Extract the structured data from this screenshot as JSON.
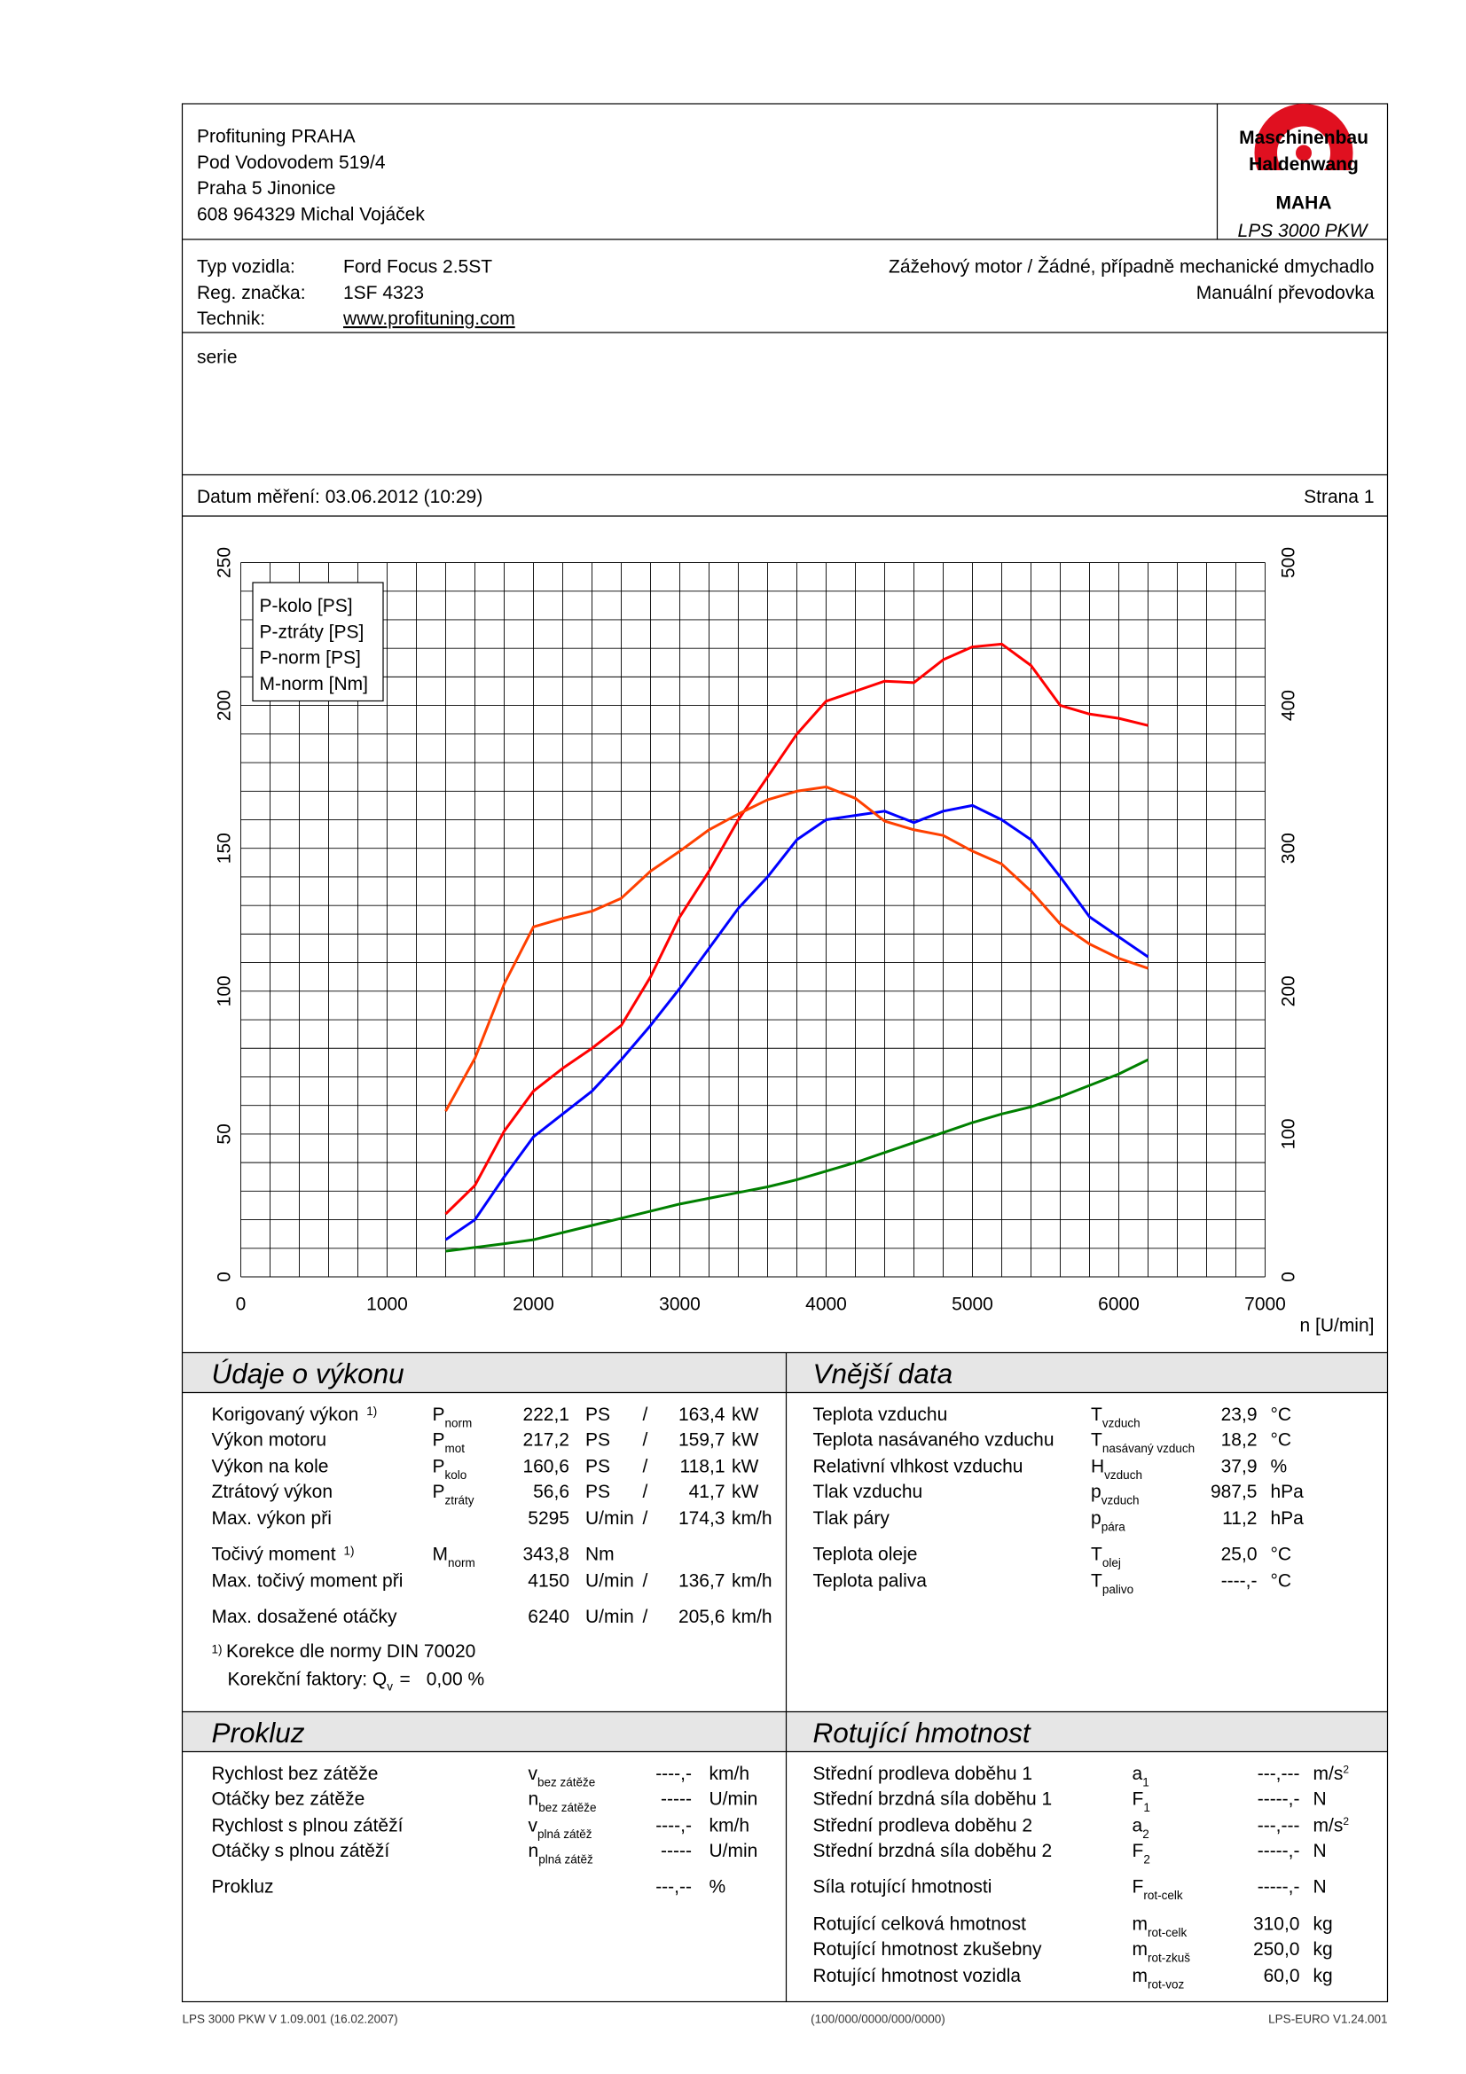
{
  "header": {
    "company": [
      "Profituning PRAHA",
      "Pod Vodovodem 519/4",
      "Praha 5 Jinonice",
      "608 964329 Michal Vojáček"
    ],
    "logo": {
      "ring_top": "Maschinenbau",
      "ring_bottom": "Haldenwang",
      "brand": "MAHA"
    },
    "model": "LPS 3000 PKW"
  },
  "vehicle": {
    "rows": [
      [
        "Typ vozidla:",
        "Ford Focus 2.5ST"
      ],
      [
        "Reg. značka:",
        "1SF 4323"
      ],
      [
        "Technik:",
        "www.profituning.com"
      ]
    ],
    "right": [
      "Zážehový motor / Žádné, případně mechanické dmychadlo",
      "Manuální převodovka"
    ]
  },
  "note": "serie",
  "date": "Datum měření: 03.06.2012 (10:29)",
  "page": "Strana 1",
  "chart_data": {
    "type": "line",
    "xlabel": "n [U/min]",
    "grid": true,
    "legend": "upper left",
    "xlim": [
      0,
      7000
    ],
    "xticks": [
      0,
      1000,
      2000,
      3000,
      4000,
      5000,
      6000,
      7000
    ],
    "ylim": [
      0,
      250
    ],
    "yticks": [
      0,
      50,
      100,
      150,
      200,
      250
    ],
    "y2lim": [
      0,
      500
    ],
    "y2ticks": [
      0,
      100,
      200,
      300,
      400,
      500
    ],
    "y2color": "#ff4000",
    "x": [
      1400,
      1600,
      1800,
      2000,
      2200,
      2400,
      2600,
      2800,
      3000,
      3200,
      3400,
      3600,
      3800,
      4000,
      4200,
      4400,
      4600,
      4800,
      5000,
      5200,
      5400,
      5600,
      5800,
      6000,
      6200
    ],
    "series": [
      {
        "name": "P-kolo [PS]",
        "color": "#0000ff",
        "values": [
          13,
          20,
          35,
          49,
          57,
          65,
          76,
          88,
          101,
          115,
          129,
          140,
          153,
          160,
          161.5,
          163,
          159,
          163,
          165,
          160,
          153,
          140,
          126,
          119,
          112
        ]
      },
      {
        "name": "P-ztráty [PS]",
        "color": "#008000",
        "values": [
          9,
          10.3,
          11.6,
          13,
          15.5,
          18,
          20.5,
          23,
          25.5,
          27.5,
          29.5,
          31.5,
          34,
          37,
          40,
          43.5,
          47,
          50.5,
          54,
          57,
          59.5,
          63,
          67,
          71,
          76
        ]
      },
      {
        "name": "P-norm [PS]",
        "color": "#ff0000",
        "values": [
          22,
          32,
          51,
          65,
          73,
          80,
          88,
          105,
          126,
          142,
          160,
          175,
          190,
          201.5,
          205,
          208.5,
          208,
          216,
          220.5,
          221.5,
          214,
          200,
          197,
          195.5,
          193
        ]
      },
      {
        "name": "M-norm [Nm]",
        "color": "#ff4000",
        "axis": "y2",
        "values": [
          116,
          153,
          205,
          245,
          251,
          256,
          265,
          284,
          298,
          313,
          324,
          334,
          340,
          343,
          335,
          319,
          313,
          309,
          298,
          289,
          270,
          247,
          233,
          223,
          216
        ]
      }
    ]
  },
  "performance": {
    "title": "Údaje o výkonu",
    "rows": [
      {
        "label": "Korigovaný výkon",
        "note": "1)",
        "sym": "P",
        "sub": "norm",
        "v1": "222,1",
        "u1": "PS",
        "sep": "/",
        "v2": "163,4",
        "u2": "kW",
        "color": "#ff0000"
      },
      {
        "label": "Výkon motoru",
        "sym": "P",
        "sub": "mot",
        "v1": "217,2",
        "u1": "PS",
        "sep": "/",
        "v2": "159,7",
        "u2": "kW",
        "color": "#ff0000"
      },
      {
        "label": "Výkon na kole",
        "sym": "P",
        "sub": "kolo",
        "v1": "160,6",
        "u1": "PS",
        "sep": "/",
        "v2": "118,1",
        "u2": "kW",
        "color": "#0000ff"
      },
      {
        "label": "Ztrátový výkon",
        "sym": "P",
        "sub": "ztráty",
        "v1": "56,6",
        "u1": "PS",
        "sep": "/",
        "v2": "41,7",
        "u2": "kW",
        "color": "#008000"
      },
      {
        "label": "Max. výkon při",
        "v1": "5295",
        "u1": "U/min",
        "sep": "/",
        "v2": "174,3",
        "u2": "km/h",
        "color": "#000000",
        "v1_color": "#808080"
      },
      {
        "label": "Točivý moment",
        "note": "1)",
        "sym": "M",
        "sub": "norm",
        "v1": "343,8",
        "u1": "Nm",
        "color": "#ff4000"
      },
      {
        "label": "Max. točivý moment při",
        "v1": "4150",
        "u1": "U/min",
        "sep": "/",
        "v2": "136,7",
        "u2": "km/h",
        "color": "#000000",
        "v1_color": "#808080"
      },
      {
        "label": "Max. dosažené otáčky",
        "v1": "6240",
        "u1": "U/min",
        "sep": "/",
        "v2": "205,6",
        "u2": "km/h",
        "color": "#000000",
        "v1_color": "#808080"
      }
    ],
    "footnote": {
      "note": "1)",
      "text": "Korekce dle normy DIN 70020",
      "factors_label": "Korekční faktory: Q",
      "factors_sub": "v",
      "factors_eq": "=",
      "factors_value": "0,00 %",
      "color": "#ff0000"
    }
  },
  "external": {
    "title": "Vnější data",
    "rows": [
      {
        "label": "Teplota vzduchu",
        "sym": "T",
        "sub": "vzduch",
        "value": "23,9",
        "unit": "°C"
      },
      {
        "label": "Teplota nasávaného vzduchu",
        "sym": "T",
        "sub": "nasávaný vzduch",
        "value": "18,2",
        "unit": "°C"
      },
      {
        "label": "Relativní vlhkost vzduchu",
        "sym": "H",
        "sub": "vzduch",
        "value": "37,9",
        "unit": "%"
      },
      {
        "label": "Tlak vzduchu",
        "sym": "p",
        "sub": "vzduch",
        "value": "987,5",
        "unit": "hPa"
      },
      {
        "label": "Tlak páry",
        "sym": "p",
        "sub": "pára",
        "value": "11,2",
        "unit": "hPa"
      },
      {
        "label": "Teplota oleje",
        "sym": "T",
        "sub": "olej",
        "value": "25,0",
        "unit": "°C"
      },
      {
        "label": "Teplota paliva",
        "sym": "T",
        "sub": "palivo",
        "value": "----,-",
        "unit": "°C"
      }
    ]
  },
  "slip": {
    "title": "Prokluz",
    "rows": [
      {
        "label": "Rychlost bez zátěže",
        "sym": "v",
        "sub": "bez zátěže",
        "value": "----,-",
        "unit": "km/h"
      },
      {
        "label": "Otáčky bez zátěže",
        "sym": "n",
        "sub": "bez zátěže",
        "value": "-----",
        "unit": "U/min"
      },
      {
        "label": "Rychlost s plnou zátěží",
        "sym": "v",
        "sub": "plná zátěž",
        "value": "----,-",
        "unit": "km/h"
      },
      {
        "label": "Otáčky s plnou zátěží",
        "sym": "n",
        "sub": "plná zátěž",
        "value": "-----",
        "unit": "U/min"
      },
      {
        "label": "Prokluz",
        "value": "---,--",
        "unit": "%"
      }
    ]
  },
  "rotating": {
    "title": "Rotující hmotnost",
    "rows": [
      {
        "label": "Střední prodleva doběhu 1",
        "sym": "a",
        "sub": "1",
        "value": "---,---",
        "unit": "m/s",
        "unit_sup": "2"
      },
      {
        "label": "Střední brzdná síla doběhu 1",
        "sym": "F",
        "sub": "1",
        "value": "-----,-",
        "unit": "N"
      },
      {
        "label": "Střední prodleva doběhu 2",
        "sym": "a",
        "sub": "2",
        "value": "---,---",
        "unit": "m/s",
        "unit_sup": "2"
      },
      {
        "label": "Střední brzdná síla doběhu 2",
        "sym": "F",
        "sub": "2",
        "value": "-----,-",
        "unit": "N"
      },
      {
        "label": "Síla rotující hmotnosti",
        "sym": "F",
        "sub": "rot-celk",
        "value": "-----,-",
        "unit": "N"
      },
      {
        "label": "Rotující celková hmotnost",
        "sym": "m",
        "sub": "rot-celk",
        "value": "310,0",
        "unit": "kg"
      },
      {
        "label": "Rotující hmotnost zkušebny",
        "sym": "m",
        "sub": "rot-zkuš",
        "value": "250,0",
        "unit": "kg"
      },
      {
        "label": "Rotující hmotnost vozidla",
        "sym": "m",
        "sub": "rot-voz",
        "value": "60,0",
        "unit": "kg"
      }
    ]
  },
  "footer": {
    "left": "LPS 3000 PKW V 1.09.001 (16.02.2007)",
    "center": "(100/000/0000/000/0000)",
    "right": "LPS-EURO V1.24.001"
  }
}
